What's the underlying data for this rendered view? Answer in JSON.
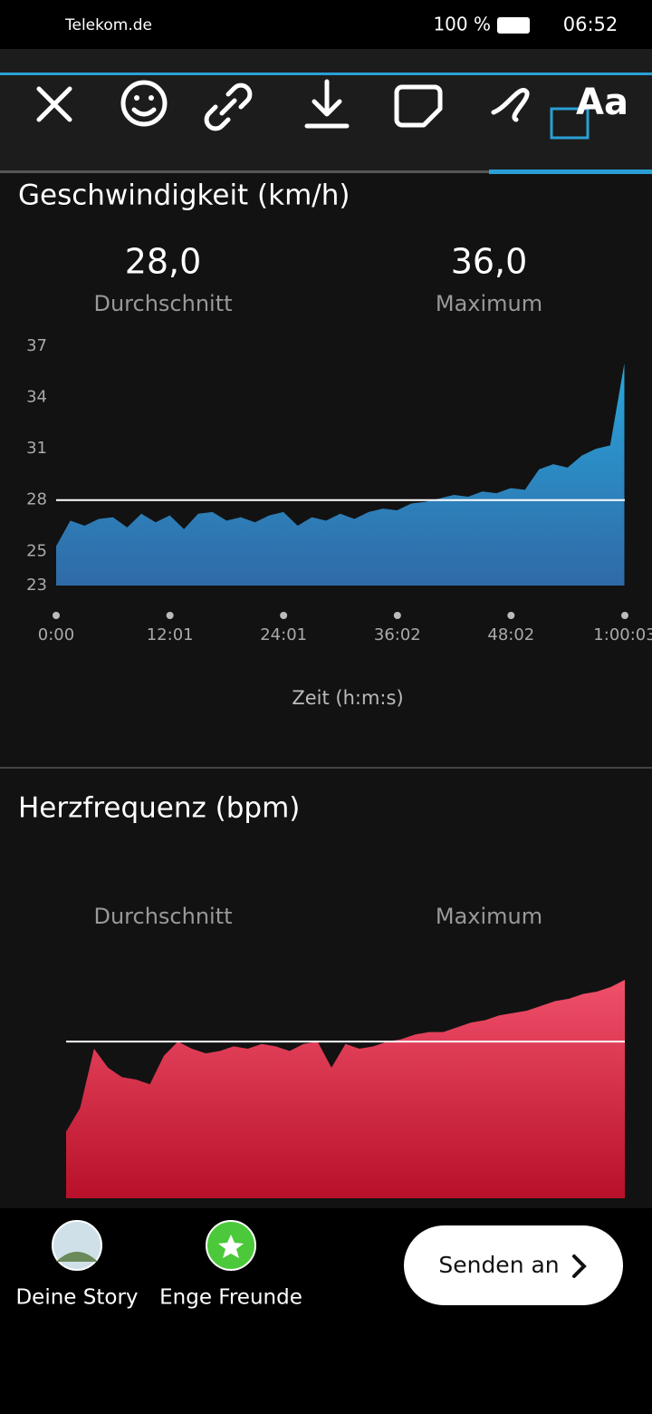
{
  "status_bar": {
    "carrier": "Telekom.de",
    "battery": "100 %",
    "time": "06:52"
  },
  "toolbar": {
    "text_tool": "Aa"
  },
  "charts": [
    {
      "type": "area",
      "title": "Geschwindigkeit (km/h)",
      "stats": [
        {
          "value": "28,0",
          "label": "Durchschnitt"
        },
        {
          "value": "36,0",
          "label": "Maximum"
        }
      ],
      "xlabel": "Zeit (h:m:s)",
      "x": [
        0,
        90,
        180,
        270,
        360,
        450,
        540,
        630,
        720,
        810,
        900,
        990,
        1080,
        1170,
        1260,
        1350,
        1440,
        1530,
        1620,
        1710,
        1800,
        1890,
        1980,
        2070,
        2160,
        2250,
        2340,
        2430,
        2520,
        2610,
        2700,
        2790,
        2880,
        2970,
        3060,
        3150,
        3240,
        3330,
        3420,
        3510,
        3600
      ],
      "values": [
        25.3,
        26.8,
        26.5,
        26.9,
        27.0,
        26.4,
        27.2,
        26.7,
        27.1,
        26.3,
        27.2,
        27.3,
        26.8,
        27.0,
        26.7,
        27.1,
        27.3,
        26.5,
        27.0,
        26.8,
        27.2,
        26.9,
        27.3,
        27.5,
        27.4,
        27.8,
        27.9,
        28.1,
        28.3,
        28.2,
        28.5,
        28.4,
        28.7,
        28.6,
        29.8,
        30.1,
        29.9,
        30.6,
        31.0,
        31.2,
        36.0
      ],
      "xlim": [
        0,
        3603
      ],
      "xticks": [
        {
          "value": 0,
          "label": "0:00"
        },
        {
          "value": 721,
          "label": "12:01"
        },
        {
          "value": 1441,
          "label": "24:01"
        },
        {
          "value": 2162,
          "label": "36:02"
        },
        {
          "value": 2882,
          "label": "48:02"
        },
        {
          "value": 3603,
          "label": "1:00:03"
        }
      ],
      "ylim": [
        23,
        37
      ],
      "yticks": [
        23,
        25,
        28,
        31,
        34,
        37
      ],
      "average_line": 28,
      "color": "#2aa6dc"
    },
    {
      "type": "area",
      "title": "Herzfrequenz (bpm)",
      "stats": [
        {
          "label": "Durchschnitt"
        },
        {
          "label": "Maximum"
        }
      ],
      "values": [
        108,
        118,
        143,
        135,
        131,
        130,
        128,
        140,
        146,
        143,
        141,
        142,
        144,
        143,
        145,
        144,
        142,
        145,
        146,
        135,
        145,
        143,
        144,
        146,
        147,
        149,
        150,
        150,
        152,
        154,
        155,
        157,
        158,
        159,
        161,
        163,
        164,
        166,
        167,
        169,
        172
      ],
      "ylim": [
        80,
        180
      ],
      "average_line": 146,
      "color": "#f0506a"
    }
  ],
  "bottom_bar": {
    "story": "Deine Story",
    "close_friends": "Enge Freunde",
    "send": "Senden an"
  }
}
